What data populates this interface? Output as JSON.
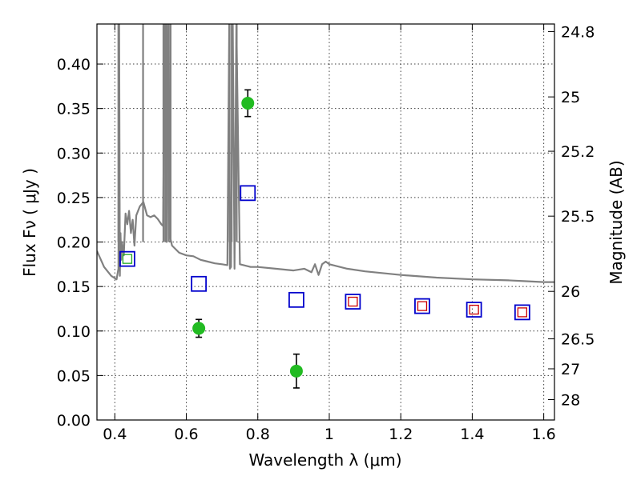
{
  "chart_data": {
    "type": "scatter",
    "title": "",
    "xlabel": "Wavelength  λ (μm)",
    "ylabel": "Flux  Fν  ( μJy )",
    "y2label": "Magnitude (AB)",
    "xlim": [
      0.35,
      1.63
    ],
    "ylim": [
      0.0,
      0.445
    ],
    "grid": true,
    "x_ticks": [
      {
        "value": 0.4,
        "label": "0.4"
      },
      {
        "value": 0.6,
        "label": "0.6"
      },
      {
        "value": 0.8,
        "label": "0.8"
      },
      {
        "value": 1.0,
        "label": "1"
      },
      {
        "value": 1.2,
        "label": "1.2"
      },
      {
        "value": 1.4,
        "label": "1.4"
      },
      {
        "value": 1.6,
        "label": "1.6"
      }
    ],
    "y_ticks": [
      {
        "value": 0.0,
        "label": "0.00"
      },
      {
        "value": 0.05,
        "label": "0.05"
      },
      {
        "value": 0.1,
        "label": "0.10"
      },
      {
        "value": 0.15,
        "label": "0.15"
      },
      {
        "value": 0.2,
        "label": "0.20"
      },
      {
        "value": 0.25,
        "label": "0.25"
      },
      {
        "value": 0.3,
        "label": "0.30"
      },
      {
        "value": 0.35,
        "label": "0.35"
      },
      {
        "value": 0.4,
        "label": "0.40"
      }
    ],
    "y2_ticks": [
      {
        "value": 24.8,
        "label": "24.8"
      },
      {
        "value": 25.0,
        "label": "25"
      },
      {
        "value": 25.2,
        "label": "25.2"
      },
      {
        "value": 25.5,
        "label": "25.5"
      },
      {
        "value": 26.0,
        "label": "26"
      },
      {
        "value": 26.5,
        "label": "26.5"
      },
      {
        "value": 27.0,
        "label": "27"
      },
      {
        "value": 28.0,
        "label": "28"
      }
    ],
    "series": [
      {
        "kind": "line",
        "color": "#808080",
        "x": [
          0.35,
          0.37,
          0.39,
          0.405,
          0.41,
          0.412,
          0.414,
          0.416,
          0.418,
          0.42,
          0.425,
          0.43,
          0.435,
          0.44,
          0.445,
          0.45,
          0.455,
          0.46,
          0.47,
          0.48,
          0.49,
          0.5,
          0.51,
          0.52,
          0.53,
          0.535,
          0.54,
          0.545,
          0.55,
          0.555,
          0.56,
          0.58,
          0.6,
          0.62,
          0.64,
          0.66,
          0.68,
          0.7,
          0.715,
          0.72,
          0.722,
          0.725,
          0.73,
          0.735,
          0.74,
          0.75,
          0.76,
          0.78,
          0.8,
          0.85,
          0.9,
          0.93,
          0.95,
          0.96,
          0.97,
          0.98,
          0.99,
          1.0,
          1.05,
          1.1,
          1.2,
          1.3,
          1.4,
          1.5,
          1.55,
          1.6,
          1.63
        ],
        "y": [
          0.19,
          0.172,
          0.162,
          0.158,
          0.17,
          0.45,
          0.162,
          0.21,
          0.18,
          0.2,
          0.185,
          0.232,
          0.22,
          0.235,
          0.21,
          0.225,
          0.196,
          0.23,
          0.24,
          0.245,
          0.23,
          0.228,
          0.23,
          0.226,
          0.22,
          0.218,
          0.45,
          0.2,
          0.45,
          0.205,
          0.196,
          0.188,
          0.185,
          0.184,
          0.18,
          0.178,
          0.176,
          0.175,
          0.174,
          0.45,
          0.17,
          0.172,
          0.45,
          0.17,
          0.45,
          0.175,
          0.174,
          0.172,
          0.172,
          0.17,
          0.168,
          0.17,
          0.166,
          0.175,
          0.163,
          0.175,
          0.178,
          0.175,
          0.17,
          0.167,
          0.163,
          0.16,
          0.158,
          0.157,
          0.156,
          0.155,
          0.155
        ]
      },
      {
        "kind": "spikes",
        "color": "#808080",
        "x": [
          0.41,
          0.479,
          0.536,
          0.541,
          0.545,
          0.551,
          0.556,
          0.721,
          0.727,
          0.741
        ],
        "y": [
          0.445,
          0.445,
          0.445,
          0.445,
          0.445,
          0.445,
          0.445,
          0.445,
          0.445,
          0.445
        ]
      },
      {
        "kind": "points",
        "marker": "square",
        "color": "#0000cc",
        "x": [
          0.435,
          0.635,
          0.772,
          0.908,
          1.066,
          1.26,
          1.405,
          1.54
        ],
        "y": [
          0.181,
          0.153,
          0.255,
          0.135,
          0.133,
          0.128,
          0.124,
          0.121
        ]
      },
      {
        "kind": "points",
        "marker": "square-small",
        "color": "#cc0000",
        "x": [
          1.066,
          1.26,
          1.405,
          1.54
        ],
        "y": [
          0.133,
          0.128,
          0.124,
          0.121
        ]
      },
      {
        "kind": "points",
        "marker": "square-small",
        "color": "#22aa22",
        "x": [
          0.435
        ],
        "y": [
          0.181
        ]
      },
      {
        "kind": "errorbar",
        "marker": "circle",
        "color": "#22bb22",
        "x": [
          0.635,
          0.772,
          0.908
        ],
        "y": [
          0.103,
          0.356,
          0.055
        ],
        "yerr": [
          0.01,
          0.015,
          0.019
        ]
      }
    ]
  }
}
